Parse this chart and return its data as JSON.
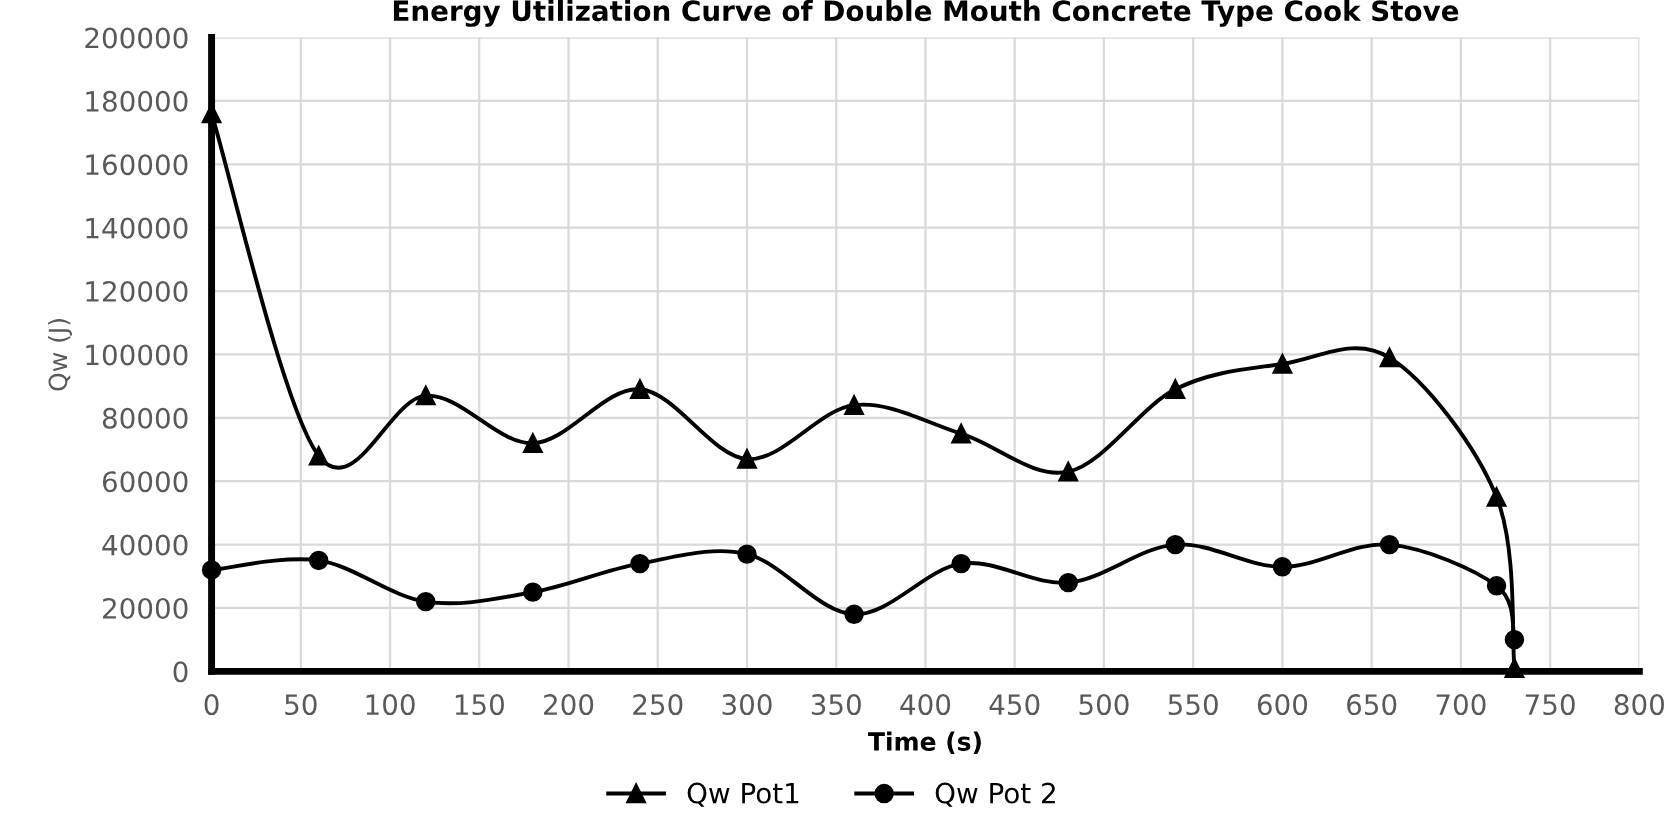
{
  "chart_data": {
    "type": "line",
    "title": "Energy Utilization Curve of Double Mouth Concrete Type Cook Stove",
    "xlabel": "Time (s)",
    "ylabel": "Qw (J)",
    "x": [
      0,
      60,
      120,
      180,
      240,
      300,
      360,
      420,
      480,
      540,
      600,
      660,
      720,
      730
    ],
    "series": [
      {
        "name": "Qw Pot1",
        "color": "#000000",
        "marker": "triangle",
        "values": [
          176000,
          68000,
          87000,
          72000,
          89000,
          67000,
          84000,
          75000,
          63000,
          89000,
          97000,
          99000,
          55000,
          1000
        ]
      },
      {
        "name": "Qw Pot 2",
        "color": "#000000",
        "marker": "circle",
        "values": [
          32000,
          35000,
          22000,
          25000,
          34000,
          37000,
          18000,
          34000,
          28000,
          40000,
          33000,
          40000,
          27000,
          10000
        ]
      }
    ],
    "xlim": [
      0,
      800
    ],
    "xticks": [
      0,
      50,
      100,
      150,
      200,
      250,
      300,
      350,
      400,
      450,
      500,
      550,
      600,
      650,
      700,
      750,
      800
    ],
    "ylim": [
      0,
      200000
    ],
    "yticks": [
      0,
      20000,
      40000,
      60000,
      80000,
      100000,
      120000,
      140000,
      160000,
      180000,
      200000
    ],
    "grid": true,
    "legend": "bottom",
    "line_style": "solid"
  }
}
